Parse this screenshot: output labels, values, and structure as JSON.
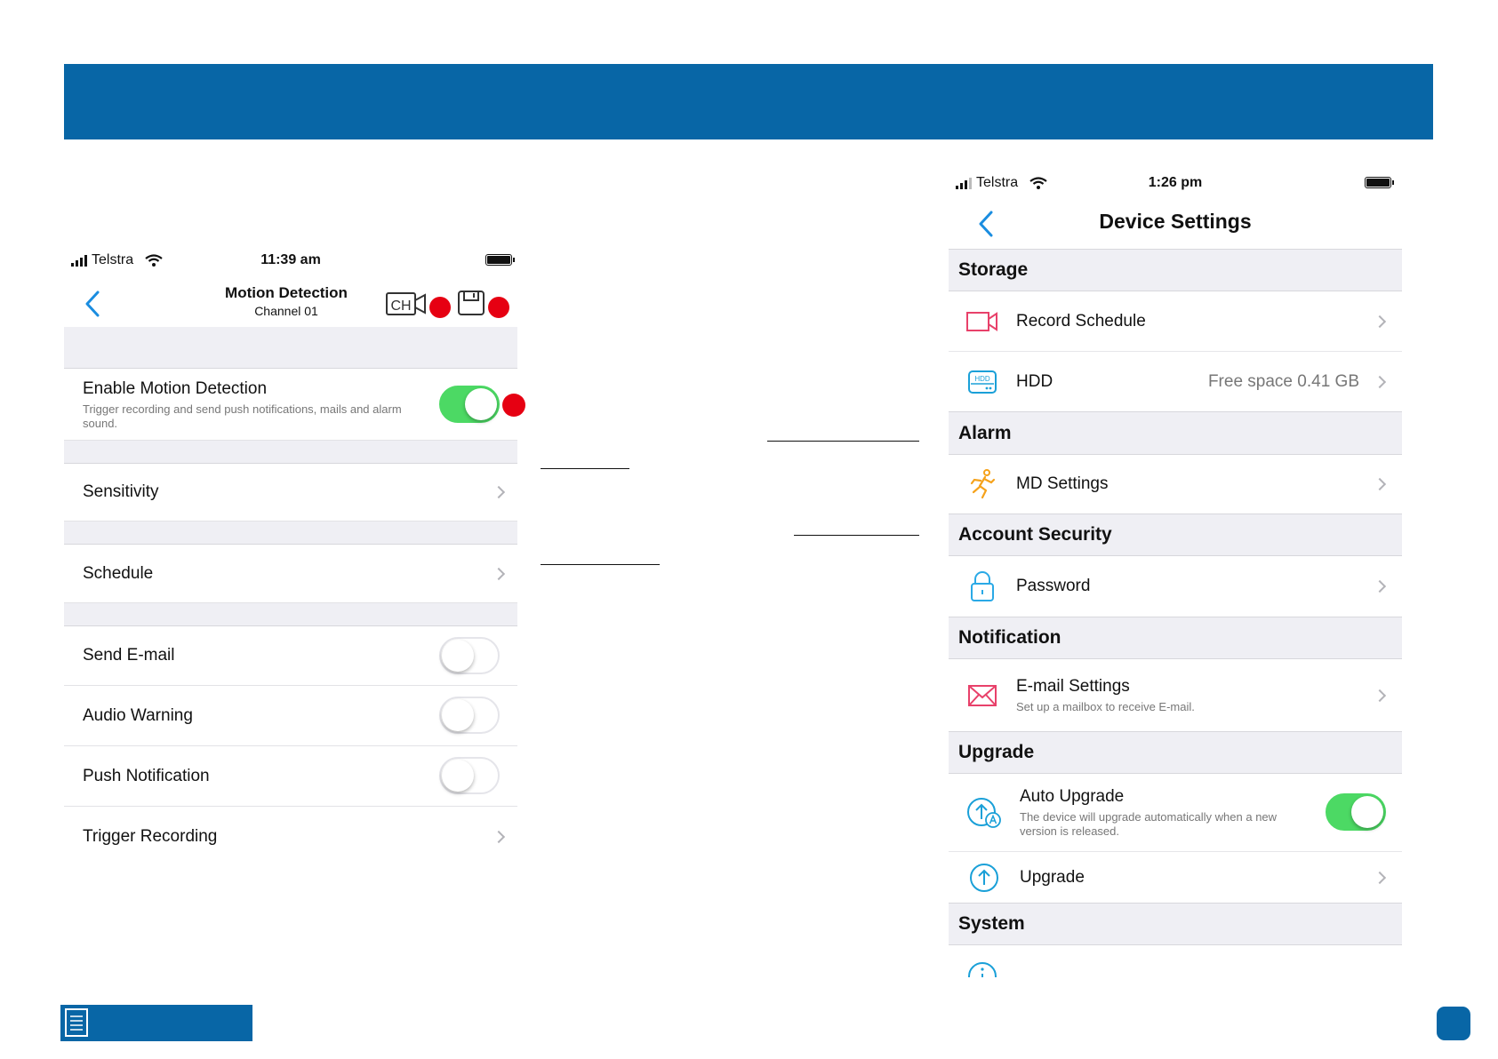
{
  "left_screen": {
    "status": {
      "carrier": "Telstra",
      "time": "11:39 am"
    },
    "nav": {
      "title": "Motion Detection",
      "subtitle": "Channel 01",
      "channel_icon_text": "CH"
    },
    "enable": {
      "label": "Enable Motion Detection",
      "description": "Trigger recording and send push notifications, mails and alarm sound.",
      "on": true
    },
    "rows": {
      "sensitivity": "Sensitivity",
      "schedule": "Schedule",
      "send_email": {
        "label": "Send E-mail",
        "on": false
      },
      "audio_warning": {
        "label": "Audio Warning",
        "on": false
      },
      "push_notification": {
        "label": "Push Notification",
        "on": false
      },
      "trigger_recording": "Trigger Recording"
    }
  },
  "right_screen": {
    "status": {
      "carrier": "Telstra",
      "time": "1:26 pm"
    },
    "nav": {
      "title": "Device Settings"
    },
    "sections": {
      "storage": "Storage",
      "alarm": "Alarm",
      "account_security": "Account Security",
      "notification": "Notification",
      "upgrade": "Upgrade",
      "system": "System"
    },
    "items": {
      "record_schedule": "Record Schedule",
      "hdd": {
        "label": "HDD",
        "value": "Free space 0.41 GB",
        "icon_text": "HDD"
      },
      "md_settings": "MD Settings",
      "password": "Password",
      "email_settings": {
        "label": "E-mail Settings",
        "description": "Set up a mailbox to receive E-mail."
      },
      "auto_upgrade": {
        "label": "Auto Upgrade",
        "description": "The device will upgrade automatically when a new version is released.",
        "on": true
      },
      "upgrade": "Upgrade"
    }
  },
  "colors": {
    "brand_blue": "#0866a6",
    "ios_blue": "#1a8de0",
    "toggle_green": "#4cd964",
    "callout_red": "#e60012",
    "record_icon_pink": "#e8416a",
    "md_icon_orange": "#f5a21b",
    "lock_icon_blue": "#2aa9e6"
  }
}
